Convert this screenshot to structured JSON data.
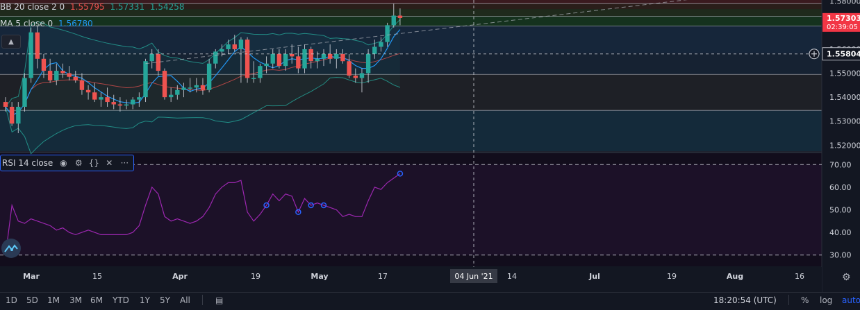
{
  "legend": {
    "bb_label": "BB 20 close 2 0",
    "bb_basis": "1.55795",
    "bb_upper": "1.57331",
    "bb_lower": "1.54258",
    "ma_label": "MA 5 close 0",
    "ma_value": "1.56780",
    "rsi_label": "RSI 14 close"
  },
  "price_scale": {
    "ticks": [
      "1.58000",
      "1.56000",
      "1.55000",
      "1.54000",
      "1.53000",
      "1.52000"
    ],
    "last_price": "1.57303",
    "countdown": "02:39:05",
    "crosshair_price": "1.55804"
  },
  "rsi_scale": {
    "ticks": [
      "70.00",
      "60.00",
      "50.00",
      "40.00",
      "30.00"
    ]
  },
  "time_axis": {
    "labels": [
      "Mar",
      "15",
      "Apr",
      "19",
      "May",
      "17",
      "14",
      "Jul",
      "19",
      "Aug",
      "16"
    ],
    "crosshair_date": "04 Jun '21"
  },
  "bottom_bar": {
    "timeframes": [
      "1D",
      "5D",
      "1M",
      "3M",
      "6M",
      "YTD",
      "1Y",
      "5Y",
      "All"
    ],
    "clock": "18:20:54 (UTC)",
    "percent": "%",
    "log": "log",
    "auto": "auto"
  },
  "colors": {
    "background": "#131722",
    "up": "#26a69a",
    "down": "#ef5350",
    "bb_band": "#26a69a",
    "bb_basis": "#ef5350",
    "ma": "#2196f3",
    "rsi": "#9c27b0",
    "rsi_fill": "#1c1128",
    "axis_text": "#d1d4dc",
    "last_price_bg": "#f23645",
    "crosshair_label_bg": "#363a45"
  },
  "chart_data": [
    {
      "type": "candlestick",
      "title": "",
      "x": [
        "Feb 22",
        "Feb 23",
        "Feb 24",
        "Feb 25",
        "Feb 26",
        "Mar 1",
        "Mar 2",
        "Mar 3",
        "Mar 4",
        "Mar 5",
        "Mar 8",
        "Mar 9",
        "Mar 10",
        "Mar 11",
        "Mar 12",
        "Mar 15",
        "Mar 16",
        "Mar 17",
        "Mar 18",
        "Mar 19",
        "Mar 22",
        "Mar 23",
        "Mar 24",
        "Mar 25",
        "Mar 26",
        "Mar 29",
        "Mar 30",
        "Mar 31",
        "Apr 1",
        "Apr 2",
        "Apr 5",
        "Apr 6",
        "Apr 7",
        "Apr 8",
        "Apr 9",
        "Apr 12",
        "Apr 13",
        "Apr 14",
        "Apr 15",
        "Apr 16",
        "Apr 19",
        "Apr 20",
        "Apr 21",
        "Apr 22",
        "Apr 23",
        "Apr 26",
        "Apr 27",
        "Apr 28",
        "Apr 29",
        "Apr 30",
        "May 3",
        "May 4",
        "May 5",
        "May 6",
        "May 7",
        "May 10",
        "May 11",
        "May 12",
        "May 13",
        "May 14",
        "May 17",
        "May 18",
        "May 19"
      ],
      "open": [
        1.538,
        1.536,
        1.529,
        1.536,
        1.548,
        1.567,
        1.556,
        1.551,
        1.547,
        1.551,
        1.55,
        1.5485,
        1.547,
        1.543,
        1.542,
        1.539,
        1.54,
        1.538,
        1.537,
        1.5365,
        1.537,
        1.539,
        1.54,
        1.555,
        1.558,
        1.551,
        1.54,
        1.541,
        1.543,
        1.544,
        1.544,
        1.545,
        1.543,
        1.554,
        1.559,
        1.56,
        1.562,
        1.56,
        1.564,
        1.548,
        1.548,
        1.553,
        1.554,
        1.558,
        1.553,
        1.558,
        1.557,
        1.552,
        1.56,
        1.555,
        1.556,
        1.558,
        1.556,
        1.558,
        1.555,
        1.549,
        1.548,
        1.55,
        1.558,
        1.561,
        1.563,
        1.57,
        1.574
      ],
      "high": [
        1.54,
        1.538,
        1.538,
        1.55,
        1.569,
        1.57,
        1.558,
        1.556,
        1.554,
        1.554,
        1.553,
        1.551,
        1.55,
        1.545,
        1.546,
        1.542,
        1.544,
        1.541,
        1.54,
        1.539,
        1.54,
        1.542,
        1.556,
        1.56,
        1.56,
        1.552,
        1.544,
        1.545,
        1.546,
        1.548,
        1.548,
        1.548,
        1.556,
        1.56,
        1.562,
        1.564,
        1.566,
        1.565,
        1.565,
        1.555,
        1.554,
        1.557,
        1.56,
        1.56,
        1.56,
        1.562,
        1.561,
        1.562,
        1.561,
        1.559,
        1.56,
        1.562,
        1.56,
        1.56,
        1.558,
        1.552,
        1.552,
        1.56,
        1.564,
        1.565,
        1.571,
        1.579,
        1.577
      ],
      "low": [
        1.534,
        1.528,
        1.525,
        1.534,
        1.546,
        1.552,
        1.548,
        1.546,
        1.545,
        1.548,
        1.547,
        1.546,
        1.541,
        1.539,
        1.538,
        1.536,
        1.536,
        1.535,
        1.534,
        1.535,
        1.535,
        1.536,
        1.538,
        1.552,
        1.549,
        1.539,
        1.538,
        1.539,
        1.54,
        1.542,
        1.542,
        1.541,
        1.542,
        1.552,
        1.557,
        1.558,
        1.559,
        1.546,
        1.546,
        1.546,
        1.546,
        1.55,
        1.552,
        1.552,
        1.551,
        1.554,
        1.55,
        1.55,
        1.552,
        1.552,
        1.553,
        1.554,
        1.552,
        1.554,
        1.548,
        1.546,
        1.542,
        1.546,
        1.556,
        1.559,
        1.561,
        1.569,
        1.57
      ],
      "close": [
        1.536,
        1.529,
        1.536,
        1.548,
        1.567,
        1.556,
        1.551,
        1.547,
        1.551,
        1.55,
        1.5485,
        1.547,
        1.543,
        1.542,
        1.539,
        1.54,
        1.538,
        1.537,
        1.5365,
        1.537,
        1.539,
        1.54,
        1.555,
        1.558,
        1.551,
        1.54,
        1.541,
        1.543,
        1.544,
        1.544,
        1.545,
        1.543,
        1.554,
        1.559,
        1.56,
        1.562,
        1.56,
        1.564,
        1.548,
        1.548,
        1.553,
        1.554,
        1.558,
        1.553,
        1.558,
        1.557,
        1.552,
        1.56,
        1.555,
        1.556,
        1.558,
        1.556,
        1.558,
        1.555,
        1.549,
        1.548,
        1.55,
        1.558,
        1.561,
        1.563,
        1.57,
        1.574,
        1.573
      ],
      "ylim": [
        1.5175,
        1.5805
      ]
    },
    {
      "type": "line",
      "title": "",
      "x_ref": "same as candlestick x",
      "series": [
        {
          "name": "RSI 14 close",
          "values": [
            30,
            52,
            45,
            44,
            46,
            45,
            44,
            43,
            41,
            42,
            40,
            39,
            40,
            41,
            40,
            39,
            39,
            39,
            39,
            39,
            40,
            43,
            52,
            60,
            57,
            47,
            45,
            46,
            45,
            44,
            45,
            47,
            51,
            57,
            60,
            62,
            62,
            63,
            49,
            45,
            48,
            52,
            57,
            54,
            57,
            56,
            49,
            55,
            52,
            53,
            52,
            51,
            50,
            47,
            48,
            47,
            47,
            54,
            60,
            59,
            62,
            64,
            66
          ]
        }
      ],
      "markers": [
        41,
        46,
        48,
        50,
        64
      ],
      "ylim": [
        25,
        75
      ],
      "levels": [
        30,
        70
      ]
    }
  ]
}
